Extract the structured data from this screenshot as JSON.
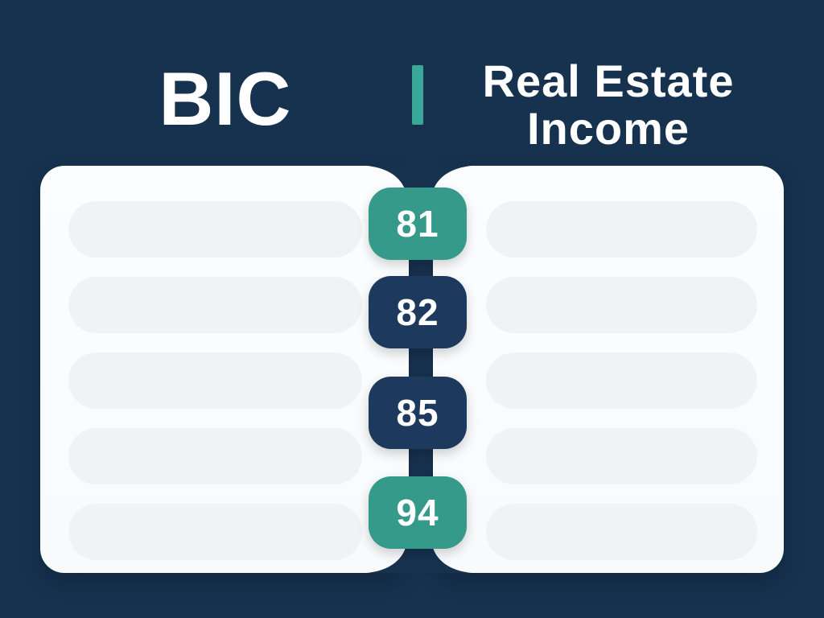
{
  "titles": {
    "left": "BIC",
    "right_line1": "Real Estate",
    "right_line2": "Income"
  },
  "steps": [
    {
      "label": "81",
      "variant": "teal"
    },
    {
      "label": "82",
      "variant": "navy"
    },
    {
      "label": "85",
      "variant": "navy"
    },
    {
      "label": "94",
      "variant": "teal"
    }
  ],
  "panels": {
    "left": {
      "placeholder_rows": 5
    },
    "right": {
      "placeholder_rows": 5
    }
  },
  "colors": {
    "background": "#16324f",
    "teal": "#369a8b",
    "divider_teal": "#3aa898",
    "navy_badge": "#1d3a5e",
    "spine": "#1a3554",
    "panel": "#fbfcfd",
    "row": "#eff3f5",
    "title_text": "#ffffff"
  }
}
